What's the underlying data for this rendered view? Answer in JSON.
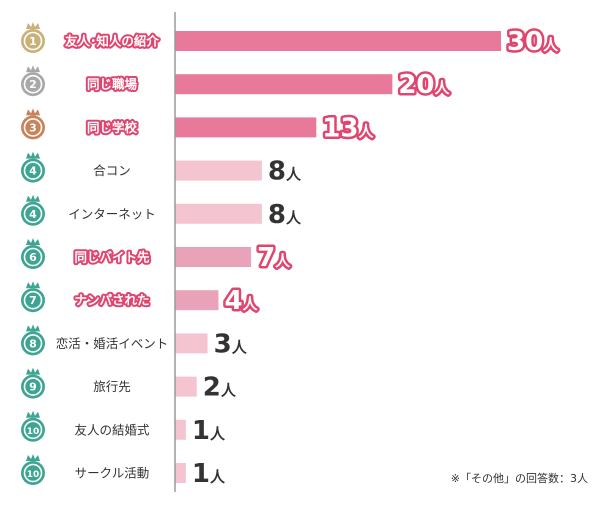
{
  "chart_data": {
    "type": "bar",
    "orientation": "horizontal",
    "title": "",
    "xlabel": "",
    "ylabel": "",
    "unit": "人",
    "xlim": [
      0,
      30
    ],
    "grid": false,
    "colors": {
      "top": "#e8799a",
      "top_outline": "#e0456f",
      "mid": "#e8a3b8",
      "light": "#f5c4d1",
      "gold": "#c8b27a",
      "silver": "#a8a8a8",
      "bronze": "#c9825a",
      "teal": "#3ea592"
    },
    "categories": [
      {
        "rank": "1",
        "label": "友人･知人の紹介",
        "value": 30,
        "value_label": "30",
        "highlight": true,
        "medal": "gold",
        "tier": "top"
      },
      {
        "rank": "2",
        "label": "同じ職場",
        "value": 20,
        "value_label": "20",
        "highlight": true,
        "medal": "silver",
        "tier": "top"
      },
      {
        "rank": "3",
        "label": "同じ学校",
        "value": 13,
        "value_label": "13",
        "highlight": true,
        "medal": "bronze",
        "tier": "top"
      },
      {
        "rank": "4",
        "label": "合コン",
        "value": 8,
        "value_label": "8",
        "highlight": false,
        "medal": "teal",
        "tier": "light"
      },
      {
        "rank": "4",
        "label": "インターネット",
        "value": 8,
        "value_label": "8",
        "highlight": false,
        "medal": "teal",
        "tier": "light"
      },
      {
        "rank": "6",
        "label": "同じバイト先",
        "value": 7,
        "value_label": "7",
        "highlight": true,
        "medal": "teal",
        "tier": "mid"
      },
      {
        "rank": "7",
        "label": "ナンパされた",
        "value": 4,
        "value_label": "4",
        "highlight": true,
        "medal": "teal",
        "tier": "mid"
      },
      {
        "rank": "8",
        "label": "恋活・婚活イベント",
        "value": 3,
        "value_label": "3",
        "highlight": false,
        "medal": "teal",
        "tier": "light"
      },
      {
        "rank": "9",
        "label": "旅行先",
        "value": 2,
        "value_label": "2",
        "highlight": false,
        "medal": "teal",
        "tier": "light"
      },
      {
        "rank": "10",
        "label": "友人の結婚式",
        "value": 1,
        "value_label": "1",
        "highlight": false,
        "medal": "teal",
        "tier": "light"
      },
      {
        "rank": "10",
        "label": "サークル活動",
        "value": 1,
        "value_label": "1",
        "highlight": false,
        "medal": "teal",
        "tier": "light"
      }
    ],
    "footnote": "※「その他」の回答数：3人"
  }
}
